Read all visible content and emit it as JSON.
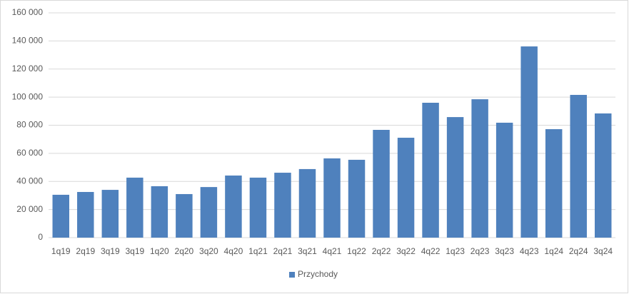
{
  "chart_data": {
    "type": "bar",
    "categories": [
      "1q19",
      "2q19",
      "3q19",
      "3q19",
      "1q20",
      "2q20",
      "3q20",
      "4q20",
      "1q21",
      "2q21",
      "3q21",
      "4q21",
      "1q22",
      "2q22",
      "3q22",
      "4q22",
      "1q23",
      "2q23",
      "3q23",
      "4q23",
      "1q24",
      "2q24",
      "3q24"
    ],
    "series": [
      {
        "name": "Przychody",
        "color": "#4f81bd",
        "values": [
          30500,
          32500,
          34000,
          42700,
          36600,
          31000,
          36000,
          44200,
          42700,
          46200,
          48800,
          56400,
          55400,
          76700,
          71100,
          96000,
          85800,
          98500,
          81800,
          136100,
          77200,
          101600,
          88400
        ]
      }
    ],
    "ylim": [
      0,
      160000
    ],
    "yticks": [
      0,
      {
        "value": 20000,
        "label": "20 000"
      },
      {
        "value": 40000,
        "label": "40 000"
      },
      {
        "value": 60000,
        "label": "60 000"
      },
      {
        "value": 80000,
        "label": "80 000"
      },
      {
        "value": 100000,
        "label": "100 000"
      },
      {
        "value": 120000,
        "label": "120 000"
      },
      {
        "value": 140000,
        "label": "140 000"
      },
      {
        "value": 160000,
        "label": "160 000"
      }
    ],
    "grid": true,
    "legend": "bottom"
  }
}
